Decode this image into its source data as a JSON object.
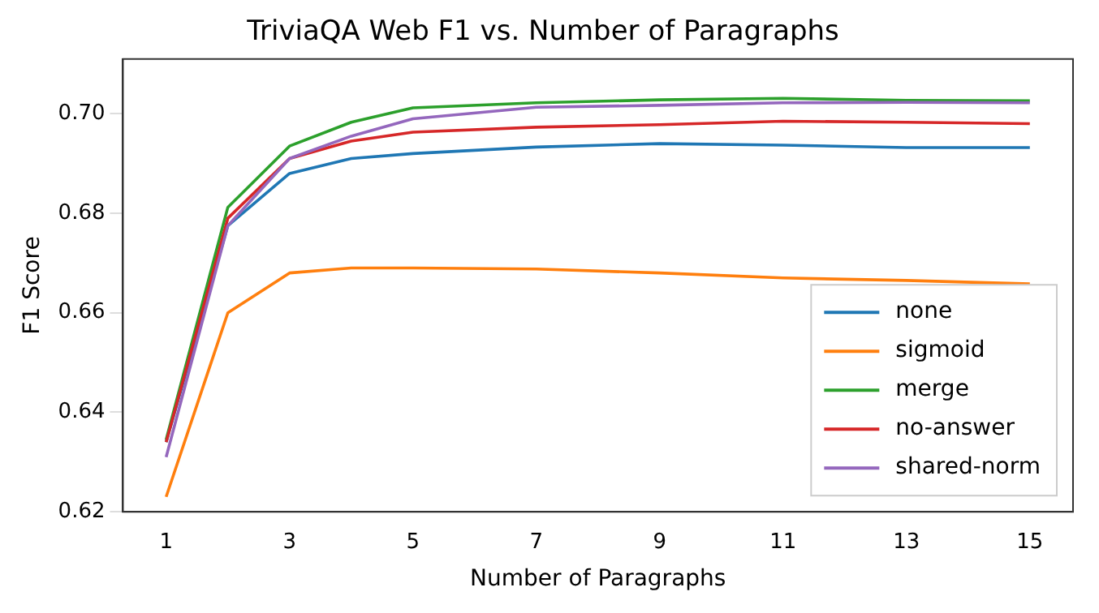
{
  "chart_data": {
    "type": "line",
    "title": "TriviaQA Web F1 vs. Number of Paragraphs",
    "xlabel": "Number of Paragraphs",
    "ylabel": "F1 Score",
    "x": [
      1,
      2,
      3,
      4,
      5,
      7,
      9,
      11,
      13,
      15
    ],
    "series": [
      {
        "name": "none",
        "color": "#1f77b4",
        "values": [
          0.634,
          0.6775,
          0.688,
          0.691,
          0.692,
          0.6933,
          0.694,
          0.6937,
          0.6932,
          0.6932
        ]
      },
      {
        "name": "sigmoid",
        "color": "#ff7f0e",
        "values": [
          0.623,
          0.66,
          0.668,
          0.669,
          0.669,
          0.6688,
          0.668,
          0.667,
          0.6665,
          0.6658
        ]
      },
      {
        "name": "merge",
        "color": "#2ca02c",
        "values": [
          0.6345,
          0.6812,
          0.6935,
          0.6983,
          0.7012,
          0.7022,
          0.7028,
          0.7031,
          0.7027,
          0.7026
        ]
      },
      {
        "name": "no-answer",
        "color": "#d62728",
        "values": [
          0.634,
          0.679,
          0.691,
          0.6945,
          0.6963,
          0.6973,
          0.6978,
          0.6985,
          0.6983,
          0.698
        ]
      },
      {
        "name": "shared-norm",
        "color": "#9467bd",
        "values": [
          0.631,
          0.6775,
          0.691,
          0.6955,
          0.699,
          0.7013,
          0.7017,
          0.7022,
          0.7023,
          0.7022
        ]
      }
    ],
    "xlim": [
      0.3,
      15.7
    ],
    "xticks": [
      1,
      3,
      5,
      7,
      9,
      11,
      13,
      15
    ],
    "ylim": [
      0.62,
      0.711
    ],
    "yticks": [
      {
        "value": 0.62,
        "label": "0.62"
      },
      {
        "value": 0.64,
        "label": "0.64"
      },
      {
        "value": 0.66,
        "label": "0.66"
      },
      {
        "value": 0.68,
        "label": "0.68"
      },
      {
        "value": 0.7,
        "label": "0.70"
      }
    ],
    "legend": "bottom right",
    "marker": "none",
    "line_style": "solid"
  }
}
